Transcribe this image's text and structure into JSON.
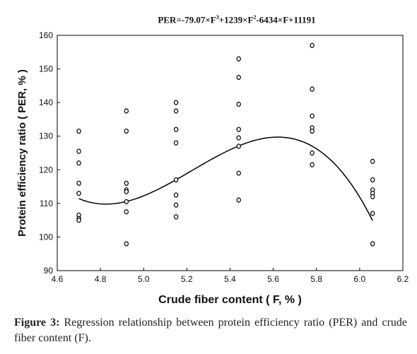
{
  "chart_data": {
    "type": "scatter",
    "title_parts": [
      "PER=-79.07×F",
      "3",
      "+1239×F",
      "2",
      "-6434×F+11191"
    ],
    "xlabel": "Crude fiber content ( F, % )",
    "ylabel": "Protein efficiency ratio ( PER, % )",
    "xlim": [
      4.6,
      6.2
    ],
    "ylim": [
      90,
      160
    ],
    "x_ticks": [
      "4.6",
      "4.8",
      "5.0",
      "5.2",
      "5.4",
      "5.6",
      "5.8",
      "6.0",
      "6.2"
    ],
    "y_ticks": [
      "90",
      "100",
      "110",
      "120",
      "130",
      "140",
      "150",
      "160"
    ],
    "grid": false,
    "points": [
      {
        "x": 4.7,
        "y": 131.5
      },
      {
        "x": 4.7,
        "y": 125.5
      },
      {
        "x": 4.7,
        "y": 122
      },
      {
        "x": 4.7,
        "y": 116
      },
      {
        "x": 4.7,
        "y": 113
      },
      {
        "x": 4.7,
        "y": 106.5
      },
      {
        "x": 4.7,
        "y": 105.5
      },
      {
        "x": 4.7,
        "y": 105
      },
      {
        "x": 4.92,
        "y": 137.5
      },
      {
        "x": 4.92,
        "y": 131.5
      },
      {
        "x": 4.92,
        "y": 116
      },
      {
        "x": 4.92,
        "y": 114
      },
      {
        "x": 4.92,
        "y": 113.5
      },
      {
        "x": 4.92,
        "y": 110.5
      },
      {
        "x": 4.92,
        "y": 107.5
      },
      {
        "x": 4.92,
        "y": 98
      },
      {
        "x": 5.15,
        "y": 140
      },
      {
        "x": 5.15,
        "y": 137.5
      },
      {
        "x": 5.15,
        "y": 132
      },
      {
        "x": 5.15,
        "y": 128
      },
      {
        "x": 5.15,
        "y": 117
      },
      {
        "x": 5.15,
        "y": 112.5
      },
      {
        "x": 5.15,
        "y": 109.5
      },
      {
        "x": 5.15,
        "y": 106
      },
      {
        "x": 5.44,
        "y": 153
      },
      {
        "x": 5.44,
        "y": 147.5
      },
      {
        "x": 5.44,
        "y": 139.5
      },
      {
        "x": 5.44,
        "y": 132
      },
      {
        "x": 5.44,
        "y": 129.5
      },
      {
        "x": 5.44,
        "y": 127
      },
      {
        "x": 5.44,
        "y": 119
      },
      {
        "x": 5.44,
        "y": 111
      },
      {
        "x": 5.78,
        "y": 157
      },
      {
        "x": 5.78,
        "y": 144
      },
      {
        "x": 5.78,
        "y": 136
      },
      {
        "x": 5.78,
        "y": 132.5
      },
      {
        "x": 5.78,
        "y": 131.5
      },
      {
        "x": 5.78,
        "y": 125
      },
      {
        "x": 5.78,
        "y": 121.5
      },
      {
        "x": 6.06,
        "y": 122.5
      },
      {
        "x": 6.06,
        "y": 117
      },
      {
        "x": 6.06,
        "y": 114
      },
      {
        "x": 6.06,
        "y": 113
      },
      {
        "x": 6.06,
        "y": 112
      },
      {
        "x": 6.06,
        "y": 107
      },
      {
        "x": 6.06,
        "y": 98
      }
    ],
    "fit": {
      "type": "cubic",
      "coefficients": [
        -79.07,
        1239,
        -6434,
        11191
      ],
      "x_range": [
        4.7,
        6.06
      ]
    }
  },
  "caption": {
    "label": "Figure 3:",
    "text": " Regression relationship between protein efficiency ratio (PER) and crude fiber content (F)."
  }
}
